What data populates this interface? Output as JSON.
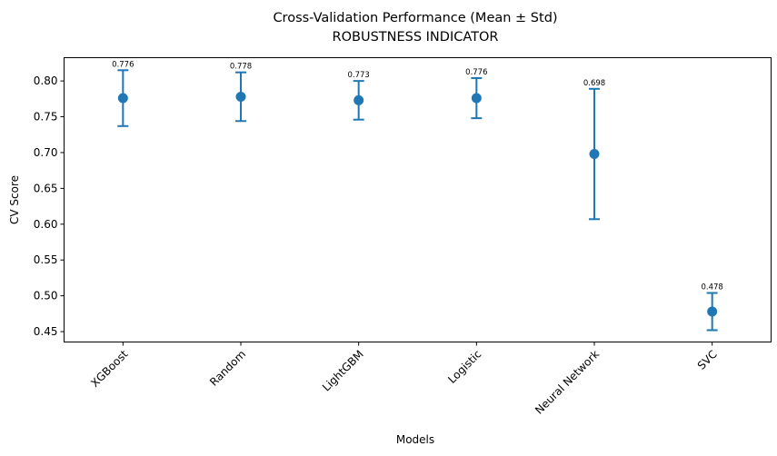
{
  "chart_data": {
    "type": "scatter",
    "title": "Cross-Validation Performance (Mean ± Std)",
    "subtitle": "ROBUSTNESS INDICATOR",
    "xlabel": "Models",
    "ylabel": "CV Score",
    "categories": [
      "XGBoost",
      "Random",
      "LightGBM",
      "Logistic",
      "Neural Network",
      "SVC"
    ],
    "means": [
      0.776,
      0.778,
      0.773,
      0.776,
      0.698,
      0.478
    ],
    "stds": [
      0.039,
      0.034,
      0.027,
      0.028,
      0.091,
      0.026
    ],
    "data_labels": [
      "0.776",
      "0.778",
      "0.773",
      "0.776",
      "0.698",
      "0.478"
    ],
    "yticks": [
      0.45,
      0.5,
      0.55,
      0.6,
      0.65,
      0.7,
      0.75,
      0.8
    ],
    "ytick_labels": [
      "0.45",
      "0.50",
      "0.55",
      "0.60",
      "0.65",
      "0.70",
      "0.75",
      "0.80"
    ],
    "ylim": [
      0.4355,
      0.8325
    ],
    "grid": false,
    "legend": "none",
    "color": "#1f77b4"
  }
}
